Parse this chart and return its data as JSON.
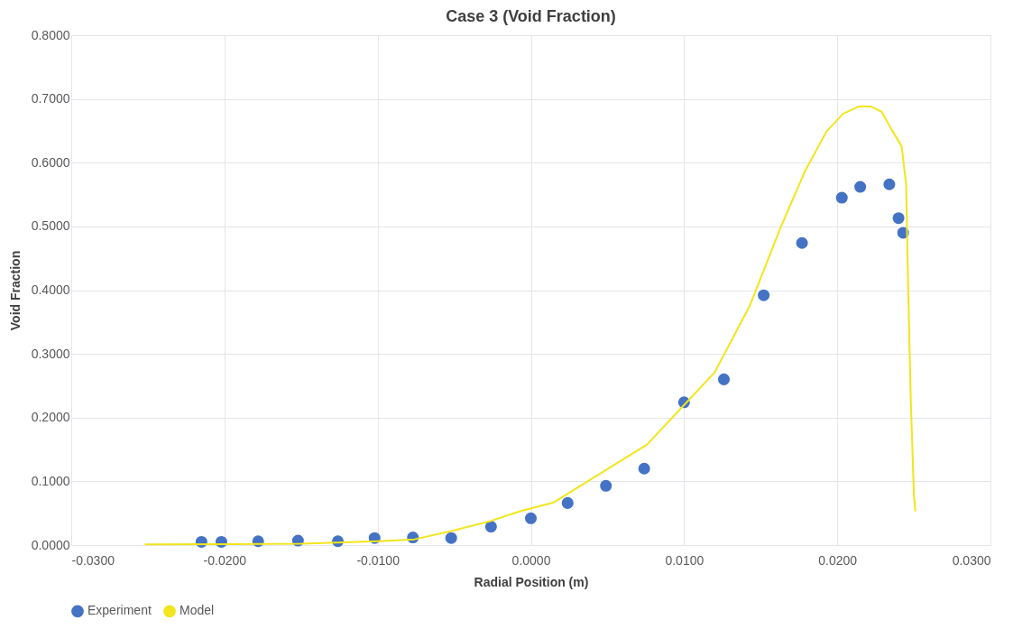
{
  "chart_data": {
    "type": "scatter",
    "title": "Case 3 (Void Fraction)",
    "xlabel": "Radial Position (m)",
    "ylabel": "Void Fraction",
    "xlim": [
      -0.03,
      0.03
    ],
    "xticks": [
      {
        "value": -0.03,
        "label": "-0.0300"
      },
      {
        "value": -0.02,
        "label": "-0.0200"
      },
      {
        "value": -0.01,
        "label": "-0.0100"
      },
      {
        "value": 0,
        "label": "0.0000"
      },
      {
        "value": 0.01,
        "label": "0.0100"
      },
      {
        "value": 0.02,
        "label": "0.0200"
      },
      {
        "value": 0.03,
        "label": "0.0300"
      }
    ],
    "ylim": [
      0,
      0.8
    ],
    "yticks": [
      {
        "value": 0,
        "label": "0.0000"
      },
      {
        "value": 0.1,
        "label": "0.1000"
      },
      {
        "value": 0.2,
        "label": "0.2000"
      },
      {
        "value": 0.3,
        "label": "0.3000"
      },
      {
        "value": 0.4,
        "label": "0.4000"
      },
      {
        "value": 0.5,
        "label": "0.5000"
      },
      {
        "value": 0.6,
        "label": "0.6000"
      },
      {
        "value": 0.7,
        "label": "0.7000"
      },
      {
        "value": 0.8,
        "label": "0.8000"
      }
    ],
    "grid": true,
    "legend": "bottom",
    "series": [
      {
        "name": "Experiment",
        "marker": "circle",
        "color": "#4472c4",
        "x": [
          -0.0215,
          -0.0202,
          -0.0178,
          -0.0152,
          -0.0126,
          -0.0102,
          -0.0077,
          -0.0052,
          -0.0026,
          0.0,
          0.0024,
          0.0049,
          0.0074,
          0.01,
          0.0126,
          0.0152,
          0.0177,
          0.0203,
          0.0215,
          0.0234,
          0.024,
          0.0243
        ],
        "values": [
          0.005,
          0.005,
          0.006,
          0.007,
          0.006,
          0.011,
          0.012,
          0.011,
          0.029,
          0.042,
          0.066,
          0.093,
          0.12,
          0.224,
          0.26,
          0.392,
          0.474,
          0.545,
          0.562,
          0.566,
          0.513,
          0.49
        ]
      },
      {
        "name": "Model",
        "type": "line",
        "marker": "none",
        "line_style": "solid",
        "color": "#f2e51c",
        "x": [
          -0.0252,
          -0.015,
          -0.01,
          -0.0076,
          -0.0052,
          -0.0026,
          -0.0007,
          0.0015,
          0.0076,
          0.012,
          0.0143,
          0.0163,
          0.0179,
          0.0193,
          0.0204,
          0.0214,
          0.0222,
          0.0229,
          0.0235,
          0.0242,
          0.0245,
          0.0246,
          0.0248,
          0.025,
          0.0251
        ],
        "values": [
          0.001,
          0.002,
          0.006,
          0.009,
          0.022,
          0.038,
          0.053,
          0.067,
          0.158,
          0.271,
          0.376,
          0.498,
          0.587,
          0.649,
          0.677,
          0.688,
          0.688,
          0.68,
          0.654,
          0.626,
          0.565,
          0.435,
          0.228,
          0.081,
          0.053
        ]
      }
    ]
  }
}
